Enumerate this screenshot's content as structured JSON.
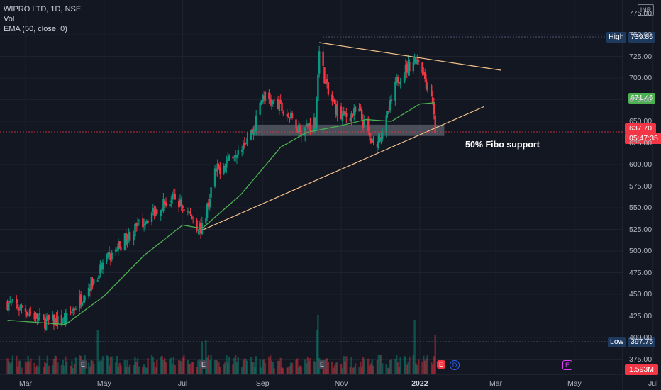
{
  "legend": {
    "symbol": "WIPRO LTD, 1D, NSE",
    "vol": "Vol",
    "ema": "EMA (50, close, 0)"
  },
  "currency": "INR",
  "annotation": "50% Fibo support",
  "markers": {
    "high_label": "High",
    "high_value": "739.85",
    "low_label": "Low",
    "low_value": "397.75",
    "ema_value": "671.45",
    "last_price": "637.70",
    "countdown": "05:47:35",
    "volume_last": "1.593M"
  },
  "event_markers": {
    "earnings": "E",
    "dividend": "D"
  },
  "colors": {
    "up": "#089981",
    "down": "#f23645",
    "ema": "#4caf50",
    "trend": "#f5c28b",
    "zone": "#b2b5be",
    "grid": "#1e222d",
    "bg": "#131722"
  },
  "chart_data": {
    "type": "candlestick",
    "title": "WIPRO LTD, 1D, NSE",
    "ylim": [
      365,
      775
    ],
    "y_ticks": [
      "775.00",
      "750.00",
      "725.00",
      "700.00",
      "675.00",
      "650.00",
      "625.00",
      "600.00",
      "575.00",
      "550.00",
      "525.00",
      "500.00",
      "475.00",
      "450.00",
      "425.00",
      "400.00",
      "375.00"
    ],
    "x_ticks": [
      "Mar",
      "May",
      "Jul",
      "Sep",
      "Nov",
      "2022",
      "Mar",
      "May",
      "Jul"
    ],
    "price_path": [
      {
        "date": "2021-02-15",
        "close": 440
      },
      {
        "date": "2021-03-01",
        "close": 432
      },
      {
        "date": "2021-03-15",
        "close": 418
      },
      {
        "date": "2021-04-01",
        "close": 420
      },
      {
        "date": "2021-04-15",
        "close": 450
      },
      {
        "date": "2021-05-01",
        "close": 485
      },
      {
        "date": "2021-05-15",
        "close": 510
      },
      {
        "date": "2021-06-01",
        "close": 535
      },
      {
        "date": "2021-06-15",
        "close": 555
      },
      {
        "date": "2021-06-25",
        "close": 560
      },
      {
        "date": "2021-07-05",
        "close": 545
      },
      {
        "date": "2021-07-12",
        "close": 530
      },
      {
        "date": "2021-07-16",
        "close": 525
      },
      {
        "date": "2021-07-26",
        "close": 590
      },
      {
        "date": "2021-08-10",
        "close": 615
      },
      {
        "date": "2021-08-25",
        "close": 640
      },
      {
        "date": "2021-09-01",
        "close": 680
      },
      {
        "date": "2021-09-15",
        "close": 665
      },
      {
        "date": "2021-10-01",
        "close": 640
      },
      {
        "date": "2021-10-12",
        "close": 650
      },
      {
        "date": "2021-10-15",
        "close": 730
      },
      {
        "date": "2021-10-22",
        "close": 680
      },
      {
        "date": "2021-11-01",
        "close": 655
      },
      {
        "date": "2021-11-15",
        "close": 660
      },
      {
        "date": "2021-11-26",
        "close": 620
      },
      {
        "date": "2021-12-05",
        "close": 645
      },
      {
        "date": "2021-12-15",
        "close": 700
      },
      {
        "date": "2021-12-28",
        "close": 722
      },
      {
        "date": "2022-01-05",
        "close": 700
      },
      {
        "date": "2022-01-10",
        "close": 680
      },
      {
        "date": "2022-01-13",
        "close": 637.7
      }
    ],
    "ema_path": [
      {
        "date": "2021-02-15",
        "value": 420
      },
      {
        "date": "2021-04-01",
        "value": 415
      },
      {
        "date": "2021-05-01",
        "value": 448
      },
      {
        "date": "2021-06-01",
        "value": 495
      },
      {
        "date": "2021-07-01",
        "value": 530
      },
      {
        "date": "2021-07-16",
        "value": 526
      },
      {
        "date": "2021-08-15",
        "value": 565
      },
      {
        "date": "2021-09-15",
        "value": 620
      },
      {
        "date": "2021-10-05",
        "value": 637
      },
      {
        "date": "2021-11-01",
        "value": 645
      },
      {
        "date": "2021-11-20",
        "value": 652
      },
      {
        "date": "2021-12-10",
        "value": 650
      },
      {
        "date": "2022-01-01",
        "value": 670
      },
      {
        "date": "2022-01-13",
        "value": 671.45
      }
    ],
    "trendlines": [
      {
        "from": {
          "date": "2021-07-16",
          "price": 524
        },
        "to": {
          "date": "2022-02-20",
          "price": 667
        }
      },
      {
        "from": {
          "date": "2021-10-15",
          "price": 741
        },
        "to": {
          "date": "2022-03-05",
          "price": 709
        }
      }
    ],
    "support_zone": {
      "from": "2021-08-25",
      "to": "2022-01-20",
      "low": 633,
      "high": 646
    }
  }
}
